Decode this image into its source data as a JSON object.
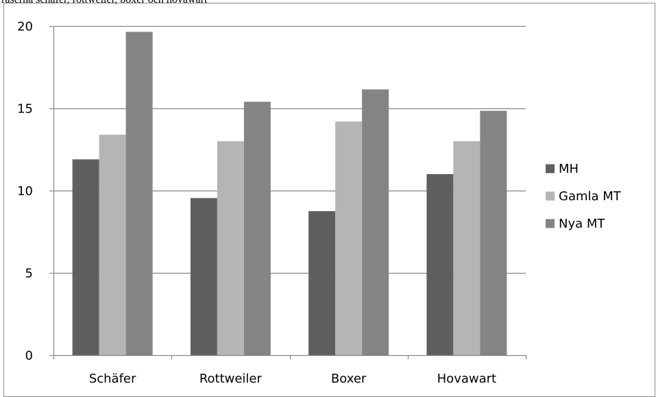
{
  "chart_data": {
    "type": "bar",
    "title": "raserna schäfer, rottweiler, boxer och hovawart",
    "xlabel": "",
    "ylabel": "",
    "categories": [
      "Schäfer",
      "Rottweiler",
      "Boxer",
      "Hovawart"
    ],
    "series": [
      {
        "name": "MH",
        "color": "#5f5f5f",
        "values": [
          11.9,
          9.55,
          8.75,
          11.0
        ]
      },
      {
        "name": "Gamla MT",
        "color": "#b5b5b5",
        "values": [
          13.4,
          13.0,
          14.2,
          13.0
        ]
      },
      {
        "name": "Nya MT",
        "color": "#848484",
        "values": [
          19.65,
          15.4,
          16.15,
          14.85
        ]
      }
    ],
    "ylim": [
      0,
      20
    ],
    "yticks": [
      "0",
      "5",
      "10",
      "15",
      "20"
    ],
    "grid": true,
    "legend_position": "right"
  }
}
